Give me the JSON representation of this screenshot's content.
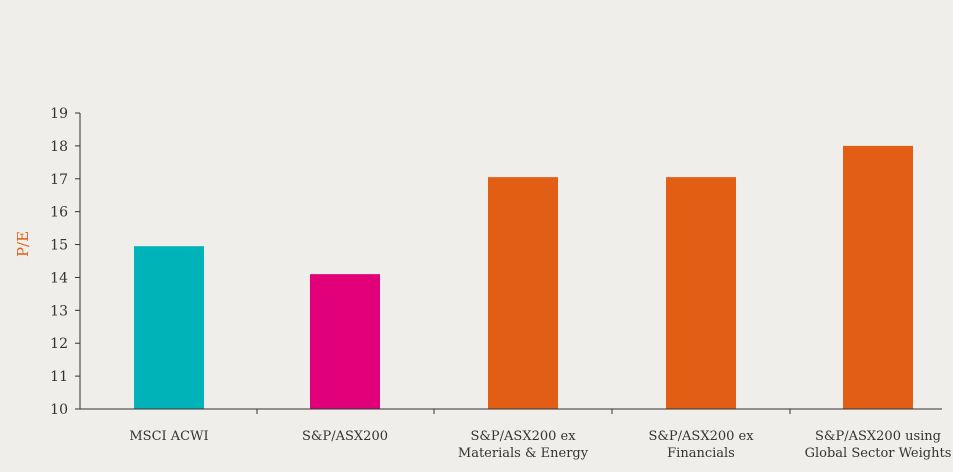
{
  "chart_data": {
    "type": "bar",
    "title": "",
    "xlabel": "",
    "ylabel": "P/E",
    "ylim": [
      10,
      19
    ],
    "yticks": [
      10,
      11,
      12,
      13,
      14,
      15,
      16,
      17,
      18,
      19
    ],
    "grid": false,
    "categories": [
      [
        "MSCI ACWI"
      ],
      [
        "S&P/ASX200"
      ],
      [
        "S&P/ASX200 ex",
        "Materials & Energy"
      ],
      [
        "S&P/ASX200 ex",
        "Financials"
      ],
      [
        "S&P/ASX200 using",
        "Global Sector Weights"
      ]
    ],
    "values": [
      14.95,
      14.1,
      17.05,
      17.05,
      18.0
    ],
    "bar_colors": [
      "#00b3b8",
      "#e2007a",
      "#e25e15",
      "#e25e15",
      "#e25e15"
    ],
    "axis_color": "#333333",
    "ylabel_color": "#e25e15",
    "text_color": "#333333"
  }
}
